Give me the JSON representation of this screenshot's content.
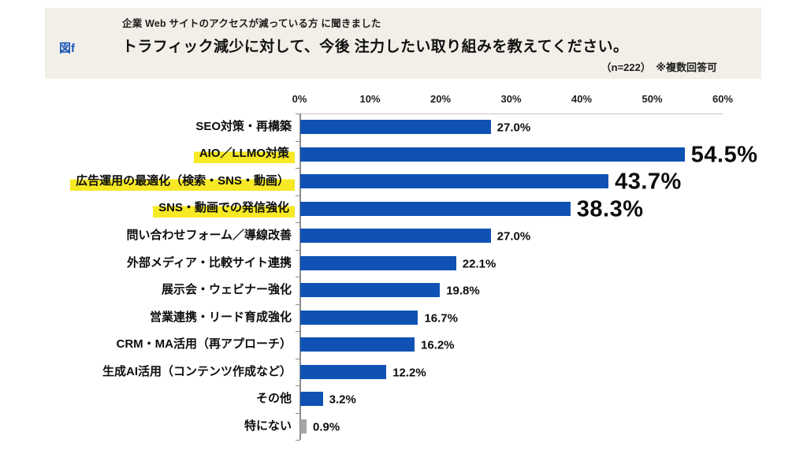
{
  "header": {
    "fig_label": "図f",
    "subtitle": "企業 Web サイトのアクセスが減っている方 に聞きました",
    "title": "トラフィック減少に対して、今後 注力したい取り組みを教えてください。",
    "note": "（n=222）　※複数回答可"
  },
  "colors": {
    "bar_blue": "#0f52b4",
    "bar_gray": "#a5a5a5",
    "highlight_yellow": "#f7e925",
    "card_bg": "#f2efe8",
    "fig_label_blue": "#1b55b8",
    "axis_gray": "#8d8d8d",
    "text": "#161616"
  },
  "chart_data": {
    "type": "bar",
    "orientation": "horizontal",
    "title": "トラフィック減少に対して、今後 注力したい取り組みを教えてください。",
    "xlabel": "",
    "ylabel": "",
    "xlim": [
      0,
      60
    ],
    "x_ticks": [
      "0%",
      "10%",
      "20%",
      "30%",
      "40%",
      "50%",
      "60%"
    ],
    "grid": false,
    "legend": false,
    "categories": [
      "SEO対策・再構築",
      "AIO／LLMO対策",
      "広告運用の最適化（検索・SNS・動画）",
      "SNS・動画での発信強化",
      "問い合わせフォーム／導線改善",
      "外部メディア・比較サイト連携",
      "展示会・ウェビナー強化",
      "営業連携・リード育成強化",
      "CRM・MA活用（再アプローチ）",
      "生成AI活用（コンテンツ作成など）",
      "その他",
      "特にない"
    ],
    "values": [
      27.0,
      54.5,
      43.7,
      38.3,
      27.0,
      22.1,
      19.8,
      16.7,
      16.2,
      12.2,
      3.2,
      0.9
    ],
    "value_labels": [
      "27.0%",
      "54.5%",
      "43.7%",
      "38.3%",
      "27.0%",
      "22.1%",
      "19.8%",
      "16.7%",
      "16.2%",
      "12.2%",
      "3.2%",
      "0.9%"
    ],
    "highlight_indices": [
      1,
      2,
      3
    ],
    "emphasis_indices": [
      1,
      2,
      3
    ],
    "gray_indices": [
      11
    ]
  }
}
